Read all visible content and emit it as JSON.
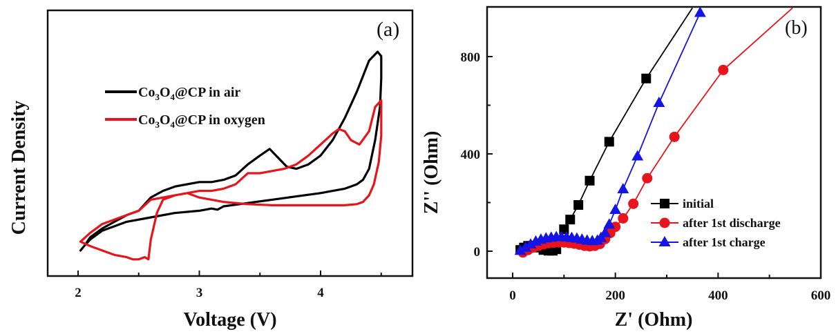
{
  "chart_data": [
    {
      "type": "line",
      "panel_label": "(a)",
      "title": "",
      "xlabel": "Voltage (V)",
      "ylabel": "Current Density",
      "xlim": [
        1.75,
        4.75
      ],
      "ylim": [
        0,
        1
      ],
      "xticks": [
        2,
        3,
        4
      ],
      "xtick_labels": [
        "2",
        "3",
        "4"
      ],
      "yticks_shown": false,
      "grid": false,
      "legend_position": "upper-left",
      "series": [
        {
          "name": "Co3O4@CP in air",
          "label_parts": [
            "Co",
            "3",
            "O",
            "4",
            "@CP in air"
          ],
          "color": "#000000",
          "x": [
            2.02,
            2.05,
            2.1,
            2.2,
            2.3,
            2.4,
            2.5,
            2.55,
            2.6,
            2.7,
            2.8,
            2.9,
            3.0,
            3.1,
            3.2,
            3.3,
            3.4,
            3.5,
            3.58,
            3.65,
            3.72,
            3.8,
            3.9,
            4.0,
            4.1,
            4.2,
            4.3,
            4.4,
            4.47,
            4.5,
            4.5,
            4.49,
            4.45,
            4.4,
            4.35,
            4.3,
            4.2,
            4.1,
            4.0,
            3.8,
            3.6,
            3.4,
            3.2,
            3.15,
            3.1,
            3.0,
            2.8,
            2.6,
            2.4,
            2.2,
            2.1,
            2.05,
            2.02
          ],
          "y": [
            0.1,
            0.12,
            0.16,
            0.2,
            0.23,
            0.26,
            0.28,
            0.31,
            0.34,
            0.37,
            0.39,
            0.4,
            0.41,
            0.41,
            0.42,
            0.44,
            0.49,
            0.53,
            0.56,
            0.52,
            0.48,
            0.47,
            0.49,
            0.53,
            0.6,
            0.7,
            0.82,
            0.96,
            1.0,
            0.98,
            0.88,
            0.75,
            0.6,
            0.47,
            0.42,
            0.4,
            0.38,
            0.37,
            0.36,
            0.345,
            0.33,
            0.315,
            0.3,
            0.285,
            0.29,
            0.28,
            0.27,
            0.25,
            0.23,
            0.19,
            0.15,
            0.12,
            0.1
          ]
        },
        {
          "name": "Co3O4@CP in oxygen",
          "label_parts": [
            "Co",
            "3",
            "O",
            "4",
            "@CP in oxygen"
          ],
          "color": "#e8141b",
          "x": [
            2.02,
            2.1,
            2.2,
            2.3,
            2.4,
            2.45,
            2.5,
            2.55,
            2.58,
            2.6,
            2.65,
            2.7,
            2.8,
            2.9,
            3.0,
            3.1,
            3.2,
            3.3,
            3.4,
            3.5,
            3.6,
            3.7,
            3.8,
            3.9,
            4.0,
            4.1,
            4.15,
            4.2,
            4.25,
            4.32,
            4.4,
            4.45,
            4.5,
            4.5,
            4.48,
            4.44,
            4.4,
            4.35,
            4.3,
            4.2,
            4.0,
            3.8,
            3.6,
            3.4,
            3.2,
            3.0,
            2.9,
            2.8,
            2.7,
            2.6,
            2.5,
            2.4,
            2.2,
            2.1,
            2.02
          ],
          "y": [
            0.14,
            0.12,
            0.1,
            0.08,
            0.07,
            0.06,
            0.06,
            0.07,
            0.06,
            0.15,
            0.27,
            0.33,
            0.35,
            0.36,
            0.37,
            0.37,
            0.38,
            0.4,
            0.45,
            0.45,
            0.46,
            0.47,
            0.49,
            0.53,
            0.58,
            0.63,
            0.65,
            0.64,
            0.6,
            0.58,
            0.64,
            0.75,
            0.78,
            0.62,
            0.5,
            0.4,
            0.35,
            0.32,
            0.31,
            0.305,
            0.305,
            0.305,
            0.305,
            0.31,
            0.32,
            0.34,
            0.36,
            0.35,
            0.34,
            0.33,
            0.28,
            0.26,
            0.22,
            0.18,
            0.14
          ]
        }
      ]
    },
    {
      "type": "line",
      "panel_label": "(b)",
      "title": "",
      "xlabel": "Z' (Ohm)",
      "ylabel": "Z'' (Ohm)",
      "xlim": [
        -50,
        600
      ],
      "ylim": [
        -100,
        1000
      ],
      "xticks": [
        0,
        200,
        400,
        600
      ],
      "xtick_labels": [
        "0",
        "200",
        "400",
        "600"
      ],
      "yticks": [
        0,
        400,
        800
      ],
      "ytick_labels": [
        "0",
        "400",
        "800"
      ],
      "grid": false,
      "legend_position": "lower-right",
      "series": [
        {
          "name": "initial",
          "color": "#000000",
          "marker": "square",
          "x": [
            15,
            22,
            30,
            40,
            50,
            60,
            70,
            78,
            85,
            92,
            100,
            112,
            128,
            150,
            188,
            260,
            350
          ],
          "y": [
            5,
            15,
            22,
            22,
            15,
            5,
            2,
            2,
            8,
            40,
            90,
            130,
            190,
            290,
            450,
            710,
            1000
          ],
          "marker_x": [
            15,
            22,
            30,
            40,
            50,
            60,
            70,
            78,
            85,
            100,
            112,
            128,
            150,
            188,
            260
          ],
          "marker_y": [
            5,
            15,
            22,
            22,
            15,
            5,
            2,
            2,
            8,
            90,
            130,
            190,
            290,
            450,
            710
          ]
        },
        {
          "name": "after 1st discharge",
          "color": "#e8141b",
          "marker": "circle",
          "x": [
            20,
            30,
            40,
            50,
            60,
            70,
            80,
            90,
            100,
            110,
            120,
            130,
            140,
            150,
            160,
            170,
            180,
            190,
            200,
            215,
            235,
            262,
            315,
            410,
            545
          ],
          "y": [
            -5,
            5,
            15,
            22,
            28,
            33,
            35,
            36,
            36,
            34,
            31,
            27,
            22,
            20,
            22,
            30,
            50,
            75,
            100,
            135,
            195,
            300,
            470,
            745,
            1000
          ],
          "marker_x": [
            20,
            30,
            40,
            50,
            60,
            70,
            80,
            90,
            100,
            110,
            120,
            130,
            140,
            150,
            160,
            170,
            180,
            190,
            200,
            215,
            235,
            262,
            315,
            410
          ],
          "marker_y": [
            -5,
            5,
            15,
            22,
            28,
            33,
            35,
            36,
            36,
            34,
            31,
            27,
            22,
            20,
            22,
            30,
            50,
            75,
            100,
            135,
            195,
            300,
            470,
            745
          ]
        },
        {
          "name": "after 1st charge",
          "color": "#1414e6",
          "marker": "triangle",
          "x": [
            15,
            25,
            35,
            45,
            55,
            65,
            75,
            85,
            95,
            105,
            115,
            125,
            135,
            145,
            155,
            165,
            172,
            180,
            188,
            200,
            215,
            243,
            285,
            365
          ],
          "y": [
            2,
            15,
            28,
            40,
            48,
            53,
            56,
            58,
            58,
            57,
            55,
            52,
            48,
            44,
            42,
            44,
            55,
            75,
            110,
            170,
            255,
            390,
            610,
            980
          ],
          "marker_x": [
            15,
            25,
            35,
            45,
            55,
            65,
            75,
            85,
            95,
            105,
            115,
            125,
            135,
            145,
            155,
            165,
            172,
            180,
            188,
            200,
            215,
            243,
            285,
            365
          ],
          "marker_y": [
            2,
            15,
            28,
            40,
            48,
            53,
            56,
            58,
            58,
            57,
            55,
            52,
            48,
            44,
            42,
            44,
            55,
            75,
            110,
            170,
            255,
            390,
            610,
            980
          ]
        }
      ]
    }
  ]
}
